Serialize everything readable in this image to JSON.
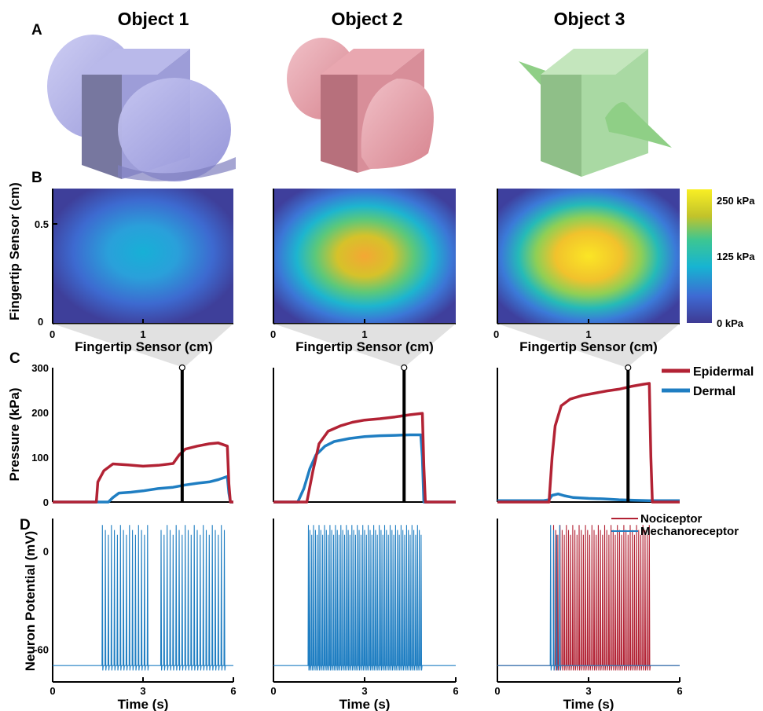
{
  "panel_letters": [
    "A",
    "B",
    "C",
    "D"
  ],
  "object_titles": [
    "Object 1",
    "Object 2",
    "Object 3"
  ],
  "heatmap": {
    "xlabel": "Fingertip Sensor (cm)",
    "ylabel": "Fingertip Sensor (cm)",
    "x_ticks": [
      "0",
      "1"
    ],
    "y_ticks": [
      "0",
      "0.5"
    ],
    "colorbar_ticks": [
      "250 kPa",
      "125 kPa",
      "0 kPa"
    ]
  },
  "pressure": {
    "ylabel": "Pressure (kPa)",
    "y_ticks": [
      "0",
      "100",
      "200",
      "300"
    ],
    "legend": [
      "Epidermal",
      "Dermal"
    ]
  },
  "neuron": {
    "ylabel": "Neuron Potential (mV)",
    "y_ticks": [
      "0",
      "-60"
    ],
    "legend": [
      "Nociceptor",
      "Mechanoreceptor"
    ],
    "xlabel": "Time (s)",
    "x_ticks": [
      "0",
      "3",
      "6"
    ]
  },
  "colors": {
    "epidermal": "#b22234",
    "dermal": "#1f7ec2",
    "nociceptor": "#b22234",
    "mechanoreceptor": "#1f7ec2",
    "object1": "#a9a9e6",
    "object2": "#e7a4ae",
    "object3": "#a9d9a3"
  },
  "chart_data": [
    {
      "type": "heatmap",
      "title": "Object 1",
      "xlabel": "Fingertip Sensor (cm)",
      "ylabel": "Fingertip Sensor (cm)",
      "xlim": [
        0,
        2
      ],
      "ylim": [
        0,
        0.7
      ],
      "color_scale_kpa": [
        0,
        250
      ],
      "peak_pressure_kpa": 110
    },
    {
      "type": "heatmap",
      "title": "Object 2",
      "xlabel": "Fingertip Sensor (cm)",
      "xlim": [
        0,
        2
      ],
      "ylim": [
        0,
        0.7
      ],
      "color_scale_kpa": [
        0,
        250
      ],
      "peak_pressure_kpa": 200
    },
    {
      "type": "heatmap",
      "title": "Object 3",
      "xlabel": "Fingertip Sensor (cm)",
      "xlim": [
        0,
        2
      ],
      "ylim": [
        0,
        0.7
      ],
      "color_scale_kpa": [
        0,
        250
      ],
      "peak_pressure_kpa": 250
    },
    {
      "type": "line",
      "ylabel": "Pressure (kPa)",
      "xlim": [
        0,
        6
      ],
      "ylim": [
        0,
        300
      ],
      "marker_time": 4.3,
      "series": [
        {
          "name": "Epidermal",
          "x": [
            0,
            1.45,
            1.5,
            1.7,
            2.0,
            2.5,
            3.0,
            3.5,
            4.0,
            4.2,
            4.4,
            4.8,
            5.2,
            5.5,
            5.8,
            5.85,
            5.9,
            6.0
          ],
          "y": [
            0,
            0,
            45,
            70,
            85,
            83,
            80,
            82,
            86,
            105,
            118,
            125,
            130,
            132,
            125,
            40,
            0,
            0
          ]
        },
        {
          "name": "Dermal",
          "x": [
            0,
            1.85,
            2.0,
            2.2,
            2.6,
            3.0,
            3.5,
            4.0,
            4.4,
            4.8,
            5.2,
            5.5,
            5.8,
            5.85,
            5.9,
            6.0
          ],
          "y": [
            0,
            0,
            10,
            20,
            22,
            25,
            30,
            33,
            38,
            42,
            45,
            50,
            57,
            20,
            0,
            0
          ]
        }
      ]
    },
    {
      "type": "line",
      "xlim": [
        0,
        6
      ],
      "ylim": [
        0,
        300
      ],
      "marker_time": 4.3,
      "series": [
        {
          "name": "Epidermal",
          "x": [
            0,
            1.1,
            1.3,
            1.5,
            1.8,
            2.2,
            2.6,
            3.0,
            3.5,
            4.0,
            4.5,
            4.9,
            4.95,
            5.0,
            6.0
          ],
          "y": [
            0,
            0,
            70,
            130,
            158,
            170,
            178,
            183,
            186,
            190,
            195,
            198,
            80,
            0,
            0
          ]
        },
        {
          "name": "Dermal",
          "x": [
            0,
            0.8,
            1.0,
            1.2,
            1.4,
            1.7,
            2.0,
            2.5,
            3.0,
            3.5,
            4.0,
            4.5,
            4.85,
            4.9,
            4.95,
            6.0
          ],
          "y": [
            0,
            0,
            30,
            75,
            105,
            125,
            135,
            142,
            146,
            148,
            149,
            150,
            150,
            100,
            0,
            0
          ]
        }
      ]
    },
    {
      "type": "line",
      "xlim": [
        0,
        6
      ],
      "ylim": [
        0,
        300
      ],
      "marker_time": 4.3,
      "series": [
        {
          "name": "Epidermal",
          "x": [
            0,
            1.7,
            1.8,
            1.9,
            2.1,
            2.4,
            2.8,
            3.2,
            3.6,
            4.0,
            4.4,
            4.8,
            5.0,
            5.05,
            5.1,
            6.0
          ],
          "y": [
            0,
            0,
            100,
            170,
            215,
            230,
            238,
            243,
            248,
            252,
            258,
            263,
            265,
            100,
            0,
            0
          ]
        },
        {
          "name": "Dermal",
          "x": [
            0,
            1.5,
            1.7,
            1.8,
            2.0,
            2.2,
            2.5,
            3.0,
            3.5,
            4.0,
            4.5,
            5.0,
            6.0
          ],
          "y": [
            3,
            3,
            5,
            15,
            18,
            14,
            10,
            8,
            7,
            5,
            4,
            3,
            3
          ]
        }
      ]
    },
    {
      "type": "line",
      "ylabel": "Neuron Potential (mV)",
      "xlabel": "Time (s)",
      "xlim": [
        0,
        6
      ],
      "ylim": [
        -75,
        20
      ],
      "resting_mv": -70,
      "spike_peak_mv": 16,
      "series": [
        {
          "name": "Mechanoreceptor",
          "spike_times": [
            1.65,
            1.75,
            1.85,
            1.95,
            2.05,
            2.15,
            2.25,
            2.35,
            2.45,
            2.55,
            2.65,
            2.75,
            2.85,
            2.95,
            3.05,
            3.15,
            3.6,
            3.7,
            3.8,
            3.9,
            4.0,
            4.1,
            4.2,
            4.3,
            4.4,
            4.5,
            4.6,
            4.7,
            4.8,
            4.9,
            5.0,
            5.1,
            5.2,
            5.3,
            5.4,
            5.5,
            5.6,
            5.7
          ]
        }
      ]
    },
    {
      "type": "line",
      "xlabel": "Time (s)",
      "xlim": [
        0,
        6
      ],
      "ylim": [
        -75,
        20
      ],
      "resting_mv": -70,
      "spike_peak_mv": 16,
      "series": [
        {
          "name": "Mechanoreceptor",
          "spike_times": [
            1.15,
            1.2,
            1.26,
            1.32,
            1.38,
            1.44,
            1.5,
            1.56,
            1.62,
            1.68,
            1.74,
            1.8,
            1.86,
            1.92,
            1.98,
            2.04,
            2.1,
            2.16,
            2.22,
            2.28,
            2.34,
            2.4,
            2.46,
            2.52,
            2.58,
            2.64,
            2.7,
            2.76,
            2.82,
            2.88,
            2.94,
            3.0,
            3.06,
            3.12,
            3.18,
            3.24,
            3.3,
            3.36,
            3.42,
            3.48,
            3.54,
            3.6,
            3.66,
            3.72,
            3.78,
            3.84,
            3.9,
            3.96,
            4.02,
            4.08,
            4.14,
            4.2,
            4.26,
            4.32,
            4.38,
            4.44,
            4.5,
            4.56,
            4.62,
            4.68,
            4.74,
            4.8,
            4.86
          ]
        }
      ]
    },
    {
      "type": "line",
      "xlabel": "Time (s)",
      "xlim": [
        0,
        6
      ],
      "ylim": [
        -75,
        20
      ],
      "resting_mv": -70,
      "spike_peak_mv": 16,
      "series": [
        {
          "name": "Nociceptor",
          "spike_times": [
            1.85,
            1.92,
            1.99,
            2.06,
            2.13,
            2.2,
            2.27,
            2.34,
            2.41,
            2.48,
            2.55,
            2.62,
            2.69,
            2.76,
            2.83,
            2.9,
            2.97,
            3.04,
            3.11,
            3.18,
            3.25,
            3.32,
            3.39,
            3.46,
            3.53,
            3.6,
            3.67,
            3.74,
            3.81,
            3.88,
            3.95,
            4.02,
            4.09,
            4.16,
            4.23,
            4.3,
            4.37,
            4.44,
            4.51,
            4.58,
            4.65,
            4.72,
            4.79,
            4.86,
            4.93,
            5.0
          ]
        },
        {
          "name": "Mechanoreceptor",
          "spike_times": [
            1.75,
            1.85,
            1.95,
            2.05
          ]
        }
      ]
    }
  ]
}
